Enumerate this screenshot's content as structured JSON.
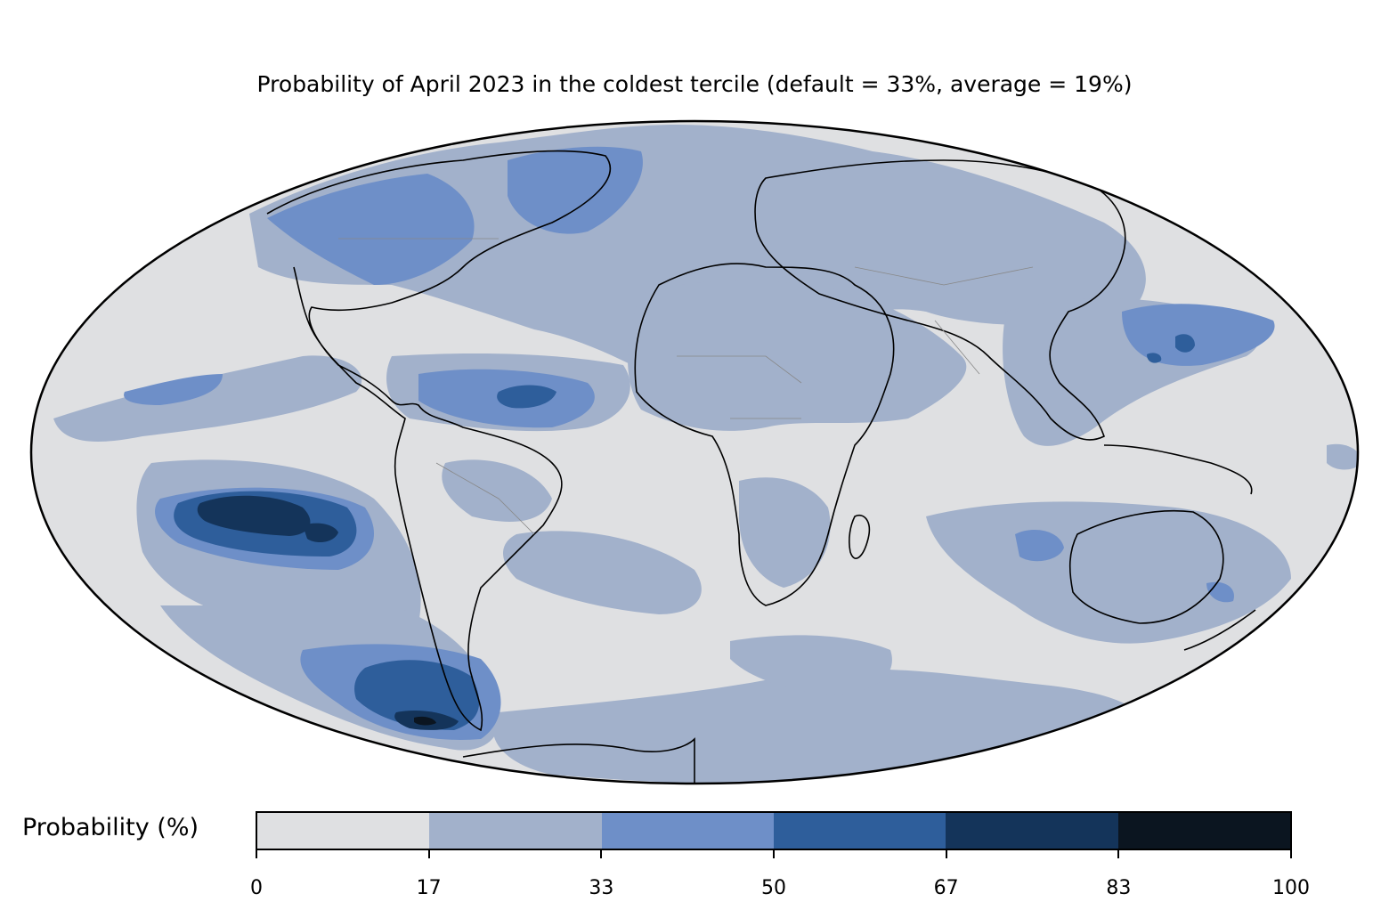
{
  "title": "Probability of April 2023 in the coldest tercile (default = 33%, average = 19%)",
  "colorbar": {
    "label": "Probability (%)",
    "ticks": [
      "0",
      "17",
      "33",
      "50",
      "67",
      "83",
      "100"
    ],
    "bins": [
      {
        "range": "0-17",
        "color": "#dfe0e2"
      },
      {
        "range": "17-33",
        "color": "#a2b1cb"
      },
      {
        "range": "33-50",
        "color": "#6e8fc8"
      },
      {
        "range": "50-67",
        "color": "#2e5e9b"
      },
      {
        "range": "67-83",
        "color": "#14345a"
      },
      {
        "range": "83-100",
        "color": "#0b1520"
      }
    ]
  },
  "map": {
    "projection": "mollweide",
    "ocean_background_color": "#dfe0e2",
    "coastline_color": "#000000",
    "border_color": "#888888"
  }
}
